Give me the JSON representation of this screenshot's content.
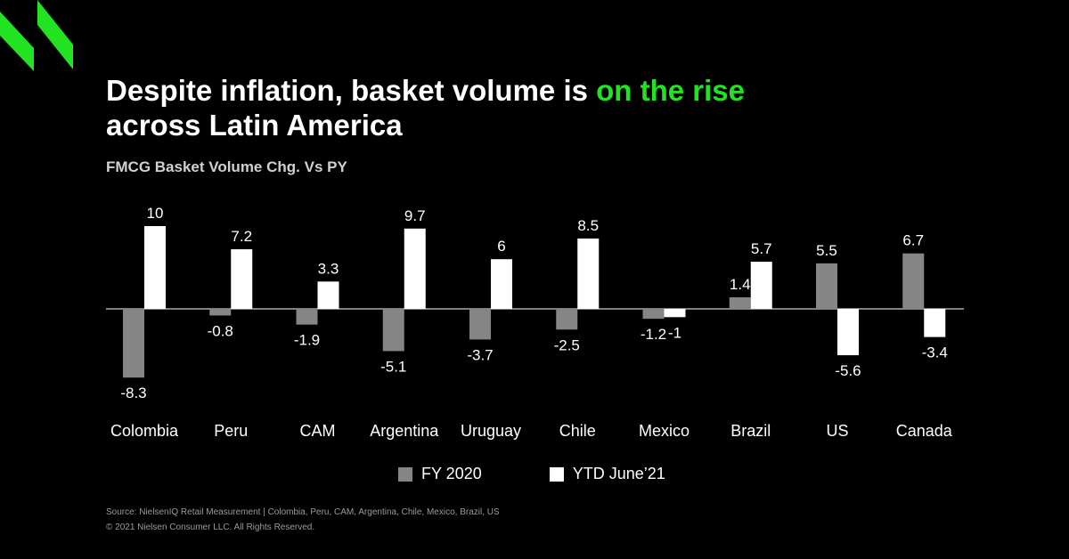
{
  "title": {
    "part1": "Despite inflation, basket volume is ",
    "highlight": "on the rise",
    "part2": "across Latin America"
  },
  "subtitle": "FMCG Basket Volume Chg. Vs PY",
  "colors": {
    "background": "#000000",
    "accent": "#22e322",
    "fy2020": "#858585",
    "ytd": "#ffffff"
  },
  "logo_icon": "brand-logo-icon",
  "chart_data": {
    "type": "bar",
    "categories": [
      "Colombia",
      "Peru",
      "CAM",
      "Argentina",
      "Uruguay",
      "Chile",
      "Mexico",
      "Brazil",
      "US",
      "Canada"
    ],
    "series": [
      {
        "name": "FY 2020",
        "values": [
          -8.3,
          -0.8,
          -1.9,
          -5.1,
          -3.7,
          -2.5,
          -1.2,
          1.4,
          5.5,
          6.7
        ]
      },
      {
        "name": "YTD June’21",
        "values": [
          10,
          7.2,
          3.3,
          9.7,
          6,
          8.5,
          -1,
          5.7,
          -5.6,
          -3.4
        ]
      }
    ],
    "title": "FMCG Basket Volume Chg. Vs PY",
    "xlabel": "",
    "ylabel": "",
    "ylim": [
      -8.3,
      10
    ],
    "grid": false,
    "legend": "bottom"
  },
  "legend": [
    {
      "label": "FY 2020"
    },
    {
      "label": "YTD June’21"
    }
  ],
  "source": {
    "line1": "Source: NielsenIQ Retail Measurement | Colombia, Peru, CAM, Argentina, Chile, Mexico, Brazil, US",
    "line2": "© 2021 Nielsen Consumer LLC. All Rights Reserved."
  }
}
